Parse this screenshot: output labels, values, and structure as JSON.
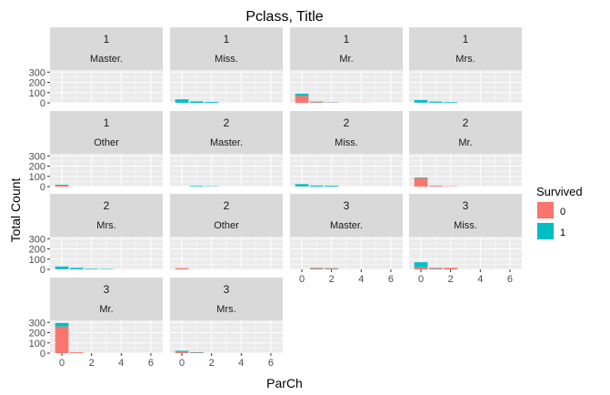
{
  "chart_data": {
    "type": "bar",
    "title": "Pclass, Title",
    "xlabel": "ParCh",
    "ylabel": "Total Count",
    "xlim": [
      -0.8,
      6.8
    ],
    "ylim": [
      0,
      320
    ],
    "x_ticks": [
      0,
      2,
      4,
      6
    ],
    "y_ticks": [
      0,
      100,
      200,
      300
    ],
    "stacked": true,
    "grid": true,
    "legend": {
      "title": "Survived",
      "position": "right",
      "entries": [
        {
          "label": "0",
          "color": "#F8766D"
        },
        {
          "label": "1",
          "color": "#00BFC4"
        }
      ]
    },
    "panels": [
      {
        "pclass": "1",
        "title": "Master.",
        "bars": [
          {
            "parch": 0,
            "died": 0,
            "survived": 0
          }
        ]
      },
      {
        "pclass": "1",
        "title": "Miss.",
        "bars": [
          {
            "parch": 0,
            "died": 1,
            "survived": 33
          },
          {
            "parch": 1,
            "died": 0,
            "survived": 14
          },
          {
            "parch": 2,
            "died": 1,
            "survived": 8
          }
        ]
      },
      {
        "pclass": "1",
        "title": "Mr.",
        "bars": [
          {
            "parch": 0,
            "died": 68,
            "survived": 22
          },
          {
            "parch": 1,
            "died": 7,
            "survived": 5
          },
          {
            "parch": 2,
            "died": 3,
            "survived": 2
          },
          {
            "parch": 4,
            "died": 1,
            "survived": 0
          }
        ]
      },
      {
        "pclass": "1",
        "title": "Mrs.",
        "bars": [
          {
            "parch": 0,
            "died": 2,
            "survived": 26
          },
          {
            "parch": 1,
            "died": 1,
            "survived": 11
          },
          {
            "parch": 2,
            "died": 0,
            "survived": 6
          }
        ]
      },
      {
        "pclass": "1",
        "title": "Other",
        "bars": [
          {
            "parch": 0,
            "died": 10,
            "survived": 8
          }
        ]
      },
      {
        "pclass": "2",
        "title": "Master.",
        "bars": [
          {
            "parch": 1,
            "died": 0,
            "survived": 6
          },
          {
            "parch": 2,
            "died": 0,
            "survived": 3
          }
        ]
      },
      {
        "pclass": "2",
        "title": "Miss.",
        "bars": [
          {
            "parch": 0,
            "died": 2,
            "survived": 22
          },
          {
            "parch": 1,
            "died": 0,
            "survived": 10
          },
          {
            "parch": 2,
            "died": 0,
            "survived": 8
          }
        ]
      },
      {
        "pclass": "2",
        "title": "Mr.",
        "bars": [
          {
            "parch": 0,
            "died": 80,
            "survived": 7
          },
          {
            "parch": 1,
            "died": 8,
            "survived": 1
          },
          {
            "parch": 2,
            "died": 3,
            "survived": 0
          }
        ]
      },
      {
        "pclass": "2",
        "title": "Mrs.",
        "bars": [
          {
            "parch": 0,
            "died": 2,
            "survived": 26
          },
          {
            "parch": 1,
            "died": 1,
            "survived": 14
          },
          {
            "parch": 2,
            "died": 1,
            "survived": 6
          },
          {
            "parch": 3,
            "died": 0,
            "survived": 4
          }
        ]
      },
      {
        "pclass": "2",
        "title": "Other",
        "bars": [
          {
            "parch": 0,
            "died": 12,
            "survived": 0
          }
        ]
      },
      {
        "pclass": "3",
        "title": "Master.",
        "bars": [
          {
            "parch": 1,
            "died": 10,
            "survived": 5
          },
          {
            "parch": 2,
            "died": 8,
            "survived": 4
          }
        ]
      },
      {
        "pclass": "3",
        "title": "Miss.",
        "bars": [
          {
            "parch": 0,
            "died": 20,
            "survived": 50
          },
          {
            "parch": 1,
            "died": 10,
            "survived": 5
          },
          {
            "parch": 2,
            "died": 15,
            "survived": 0
          }
        ]
      },
      {
        "pclass": "3",
        "title": "Mr.",
        "bars": [
          {
            "parch": 0,
            "died": 260,
            "survived": 35
          },
          {
            "parch": 1,
            "died": 8,
            "survived": 0
          }
        ]
      },
      {
        "pclass": "3",
        "title": "Mrs.",
        "bars": [
          {
            "parch": 0,
            "died": 12,
            "survived": 11
          },
          {
            "parch": 1,
            "died": 5,
            "survived": 4
          }
        ]
      }
    ]
  }
}
